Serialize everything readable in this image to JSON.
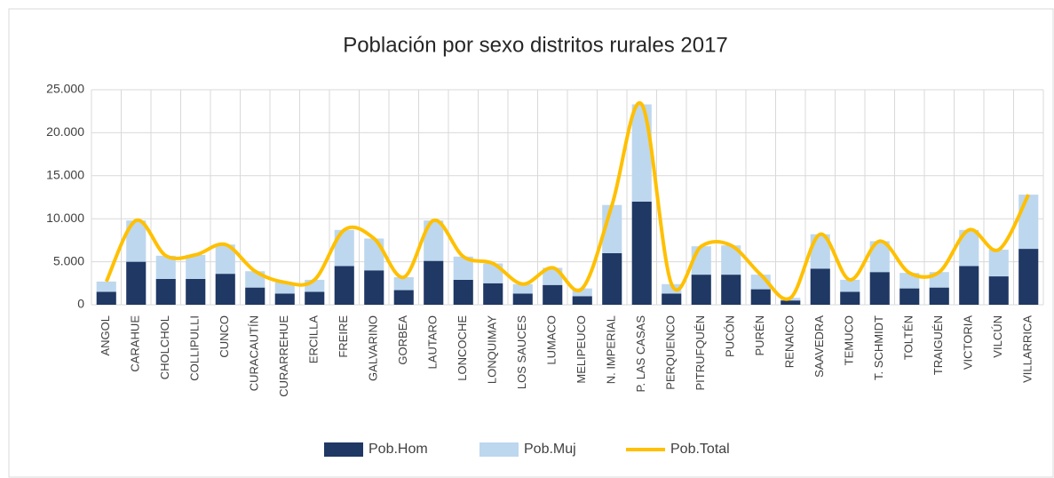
{
  "chart_data": {
    "type": "bar_line",
    "title": "Población por sexo distritos rurales 2017",
    "categories": [
      "ANGOL",
      "CARAHUE",
      "CHOLCHOL",
      "COLLIPULLI",
      "CUNCO",
      "CURACAUTÍN",
      "CURARREHUE",
      "ERCILLA",
      "FREIRE",
      "GALVARINO",
      "GORBEA",
      "LAUTARO",
      "LONCOCHE",
      "LONQUIMAY",
      "LOS SAUCES",
      "LUMACO",
      "MELIPEUCO",
      "N. IMPERIAL",
      "P. LAS CASAS",
      "PERQUENCO",
      "PITRUFQUÉN",
      "PUCÓN",
      "PURÉN",
      "RENAICO",
      "SAAVEDRA",
      "TEMUCO",
      "T. SCHMIDT",
      "TOLTÉN",
      "TRAIGUÉN",
      "VICTORIA",
      "VILCÚN",
      "VILLARRICA"
    ],
    "series": [
      {
        "name": "Pob.Hom",
        "type": "bar",
        "color": "#1f3864",
        "values": [
          1500,
          5000,
          3000,
          3000,
          3600,
          2000,
          1300,
          1500,
          4500,
          4000,
          1700,
          5100,
          2900,
          2500,
          1300,
          2300,
          1000,
          6000,
          12000,
          1300,
          3500,
          3500,
          1800,
          500,
          4200,
          1500,
          3800,
          1900,
          2000,
          4500,
          3300,
          6500
        ]
      },
      {
        "name": "Pob.Muj",
        "type": "bar",
        "color": "#bdd7ee",
        "values": [
          1200,
          4800,
          2700,
          2800,
          3400,
          1900,
          1300,
          1400,
          4200,
          3700,
          1500,
          4700,
          2700,
          2300,
          1100,
          2000,
          900,
          5600,
          11300,
          1100,
          3300,
          3400,
          1700,
          300,
          4000,
          1400,
          3600,
          1800,
          1800,
          4200,
          3100,
          6300
        ]
      },
      {
        "name": "Pob.Total",
        "type": "line",
        "color": "#ffc000",
        "values": [
          2700,
          9800,
          5700,
          5800,
          7000,
          3900,
          2600,
          2900,
          8700,
          7700,
          3200,
          9800,
          5600,
          4800,
          2400,
          4300,
          1900,
          11600,
          23300,
          2400,
          6800,
          6900,
          3500,
          800,
          8200,
          2900,
          7400,
          3700,
          3800,
          8700,
          6400,
          12800
        ]
      }
    ],
    "ylim": [
      0,
      25000
    ],
    "yticks": [
      0,
      {
        "value": 5000,
        "label": "5.000"
      },
      {
        "value": 10000,
        "label": "10.000"
      },
      {
        "value": 15000,
        "label": "15.000"
      },
      {
        "value": 20000,
        "label": "20.000"
      },
      {
        "value": 25000,
        "label": "25.000"
      }
    ],
    "grid": true,
    "legend": "bottom"
  }
}
